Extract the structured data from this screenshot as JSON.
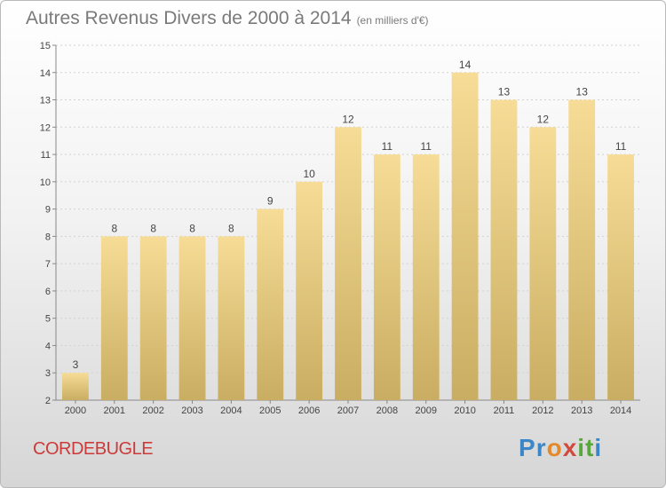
{
  "header": {
    "title": "Autres Revenus Divers de 2000 à 2014",
    "unit": "(en milliers d'€)"
  },
  "footer": {
    "commune": "CORDEBUGLE",
    "logo": "Proxiti"
  },
  "colors": {
    "bar_top": "#f6dc96",
    "bar_bottom": "#c9ad62",
    "title": "#7a7a7a",
    "commune": "#cc3a3a"
  },
  "chart_data": {
    "type": "bar",
    "categories": [
      "2000",
      "2001",
      "2002",
      "2003",
      "2004",
      "2005",
      "2006",
      "2007",
      "2008",
      "2009",
      "2010",
      "2011",
      "2012",
      "2013",
      "2014"
    ],
    "values": [
      3,
      8,
      8,
      8,
      8,
      9,
      10,
      12,
      11,
      11,
      14,
      13,
      12,
      13,
      11
    ],
    "ylim": [
      2,
      15
    ],
    "yticks": [
      2,
      3,
      4,
      5,
      6,
      7,
      8,
      9,
      10,
      11,
      12,
      13,
      14,
      15
    ],
    "grid": true,
    "data_labels": true
  }
}
